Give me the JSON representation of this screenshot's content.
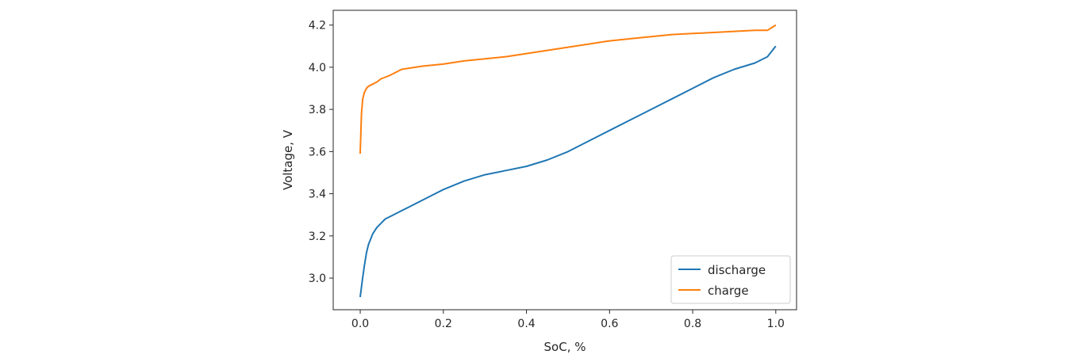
{
  "chart_data": {
    "type": "line",
    "title": "",
    "xlabel": "SoC, %",
    "ylabel": "Voltage, V",
    "xlim": [
      -0.065,
      1.05
    ],
    "ylim": [
      2.85,
      4.27
    ],
    "xticks": [
      0.0,
      0.2,
      0.4,
      0.6,
      0.8,
      1.0
    ],
    "xtick_labels": [
      "0.0",
      "0.2",
      "0.4",
      "0.6",
      "0.8",
      "1.0"
    ],
    "yticks": [
      3.0,
      3.2,
      3.4,
      3.6,
      3.8,
      4.0,
      4.2
    ],
    "ytick_labels": [
      "3.0",
      "3.2",
      "3.4",
      "3.6",
      "3.8",
      "4.0",
      "4.2"
    ],
    "grid": false,
    "legend": {
      "placement": "bottom-right"
    },
    "series": [
      {
        "name": "discharge",
        "color": "#1f77b4",
        "x": [
          0.0,
          0.005,
          0.01,
          0.015,
          0.02,
          0.03,
          0.04,
          0.05,
          0.06,
          0.07,
          0.08,
          0.1,
          0.12,
          0.15,
          0.18,
          0.2,
          0.25,
          0.3,
          0.35,
          0.4,
          0.45,
          0.5,
          0.55,
          0.6,
          0.65,
          0.7,
          0.75,
          0.8,
          0.85,
          0.9,
          0.95,
          0.98,
          1.0
        ],
        "y": [
          2.91,
          2.99,
          3.06,
          3.12,
          3.16,
          3.21,
          3.24,
          3.26,
          3.28,
          3.29,
          3.3,
          3.32,
          3.34,
          3.37,
          3.4,
          3.42,
          3.46,
          3.49,
          3.51,
          3.53,
          3.56,
          3.6,
          3.65,
          3.7,
          3.75,
          3.8,
          3.85,
          3.9,
          3.95,
          3.99,
          4.02,
          4.05,
          4.1
        ]
      },
      {
        "name": "charge",
        "color": "#ff7f0e",
        "x": [
          0.0,
          0.003,
          0.006,
          0.01,
          0.015,
          0.02,
          0.03,
          0.04,
          0.05,
          0.07,
          0.1,
          0.15,
          0.2,
          0.25,
          0.3,
          0.35,
          0.4,
          0.45,
          0.5,
          0.55,
          0.6,
          0.65,
          0.7,
          0.75,
          0.8,
          0.85,
          0.9,
          0.95,
          0.98,
          1.0
        ],
        "y": [
          3.59,
          3.78,
          3.85,
          3.88,
          3.9,
          3.91,
          3.92,
          3.93,
          3.945,
          3.96,
          3.99,
          4.005,
          4.015,
          4.03,
          4.04,
          4.05,
          4.065,
          4.08,
          4.095,
          4.11,
          4.125,
          4.135,
          4.145,
          4.155,
          4.16,
          4.165,
          4.17,
          4.175,
          4.175,
          4.2
        ]
      }
    ]
  }
}
